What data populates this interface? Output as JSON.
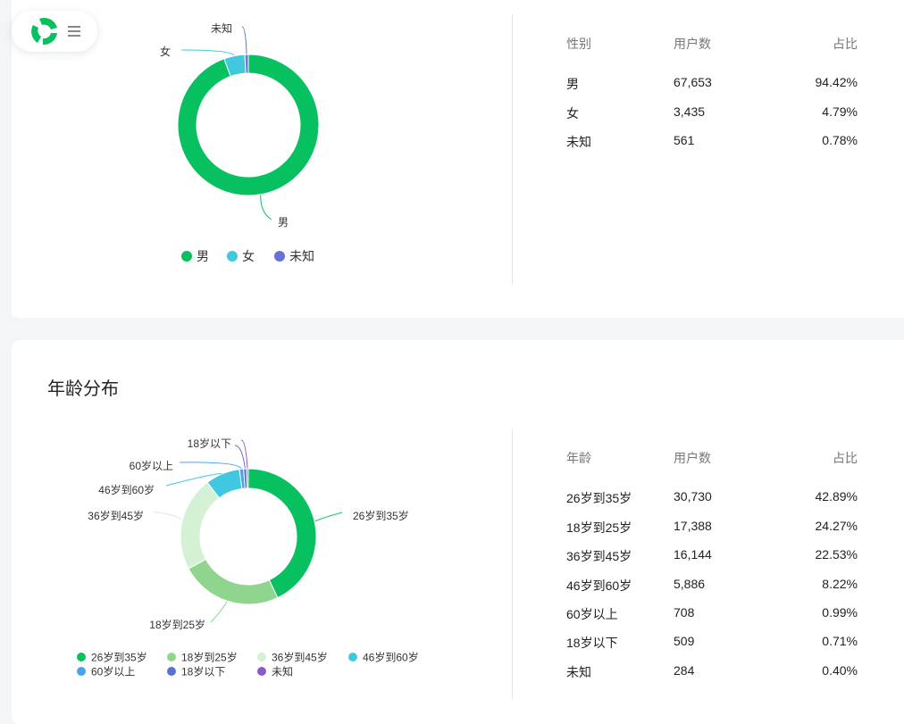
{
  "gender": {
    "table_headers": [
      "性别",
      "用户数",
      "占比"
    ],
    "rows": [
      {
        "label": "男",
        "users": "67,653",
        "pct": "94.42%"
      },
      {
        "label": "女",
        "users": "3,435",
        "pct": "4.79%"
      },
      {
        "label": "未知",
        "users": "561",
        "pct": "0.78%"
      }
    ]
  },
  "age": {
    "title": "年龄分布",
    "table_headers": [
      "年龄",
      "用户数",
      "占比"
    ],
    "rows": [
      {
        "label": "26岁到35岁",
        "users": "30,730",
        "pct": "42.89%"
      },
      {
        "label": "18岁到25岁",
        "users": "17,388",
        "pct": "24.27%"
      },
      {
        "label": "36岁到45岁",
        "users": "16,144",
        "pct": "22.53%"
      },
      {
        "label": "46岁到60岁",
        "users": "5,886",
        "pct": "8.22%"
      },
      {
        "label": "60岁以上",
        "users": "708",
        "pct": "0.99%"
      },
      {
        "label": "18岁以下",
        "users": "509",
        "pct": "0.71%"
      },
      {
        "label": "未知",
        "users": "284",
        "pct": "0.40%"
      }
    ]
  },
  "chart_data": [
    {
      "type": "pie",
      "donut": true,
      "categories": [
        "男",
        "女",
        "未知"
      ],
      "values": [
        67653,
        3435,
        561
      ],
      "colors": [
        "#07c160",
        "#40c8e0",
        "#6672d6"
      ],
      "legend": "bottom"
    },
    {
      "type": "pie",
      "donut": true,
      "categories": [
        "26岁到35岁",
        "18岁到25岁",
        "36岁到45岁",
        "46岁到60岁",
        "60岁以上",
        "18岁以下",
        "未知"
      ],
      "values": [
        30730,
        17388,
        16144,
        5886,
        708,
        509,
        284
      ],
      "colors": [
        "#07c160",
        "#8fd58e",
        "#d4f0d5",
        "#40c8e0",
        "#4aa3ea",
        "#5a6fd0",
        "#8c59cc"
      ],
      "legend": "bottom"
    }
  ],
  "icons": {
    "logo": "logo-icon",
    "menu": "menu-icon"
  }
}
